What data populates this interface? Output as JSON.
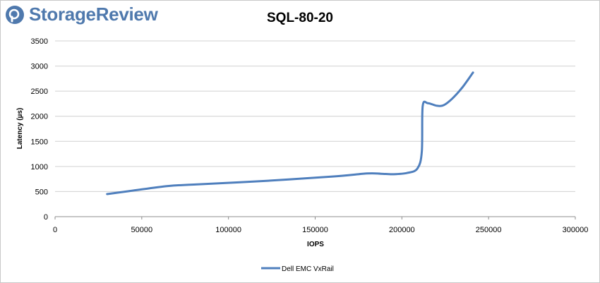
{
  "brand": {
    "name": "StorageReview",
    "logo_icon": "storagereview-logo-icon",
    "color": "#4f79ad"
  },
  "chart_data": {
    "type": "line",
    "title": "SQL-80-20",
    "xlabel": "IOPS",
    "ylabel": "Latency (µs)",
    "xlim": [
      0,
      300000
    ],
    "ylim": [
      0,
      3500
    ],
    "xticks": [
      0,
      50000,
      100000,
      150000,
      200000,
      250000,
      300000
    ],
    "yticks": [
      0,
      500,
      1000,
      1500,
      2000,
      2500,
      3000,
      3500
    ],
    "grid": "horizontal",
    "legend": "bottom",
    "series": [
      {
        "name": "Dell EMC VxRail",
        "color": "#4f7fbd",
        "points": [
          [
            30000,
            450
          ],
          [
            45000,
            520
          ],
          [
            65000,
            610
          ],
          [
            80000,
            640
          ],
          [
            120000,
            710
          ],
          [
            160000,
            800
          ],
          [
            180000,
            860
          ],
          [
            188000,
            855
          ],
          [
            195000,
            845
          ],
          [
            203000,
            870
          ],
          [
            209000,
            960
          ],
          [
            211500,
            1300
          ],
          [
            212000,
            2200
          ],
          [
            215000,
            2260
          ],
          [
            220000,
            2210
          ],
          [
            224000,
            2220
          ],
          [
            229000,
            2350
          ],
          [
            235000,
            2580
          ],
          [
            241000,
            2870
          ]
        ]
      }
    ]
  }
}
